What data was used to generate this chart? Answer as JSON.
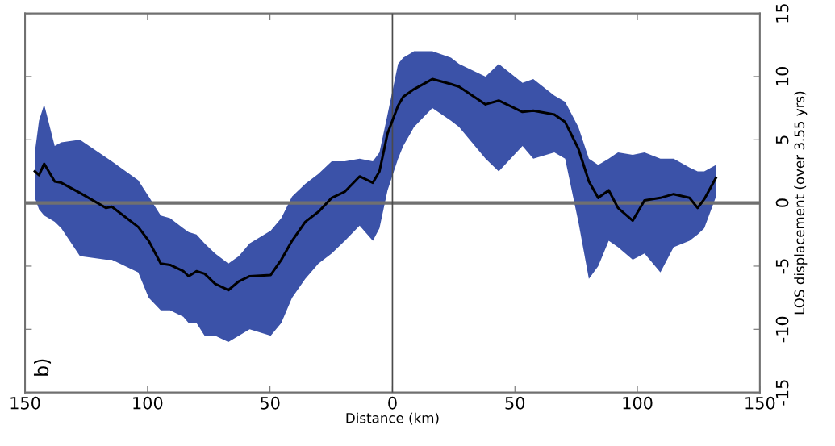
{
  "chart_data": {
    "type": "line",
    "xlabel": "Distance (km)",
    "ylabel": "LOS displacement (over 3.55 yrs)",
    "annotations": [
      "b)"
    ],
    "xlim": [
      -150,
      150
    ],
    "ylim": [
      -15,
      15
    ],
    "xticks": [
      {
        "value": -150,
        "label": "150"
      },
      {
        "value": -100,
        "label": "100"
      },
      {
        "value": -50,
        "label": "50"
      },
      0,
      50,
      100,
      150
    ],
    "yticks": [
      -15,
      -10,
      -5,
      0,
      5,
      10,
      15
    ],
    "grid": false,
    "marker": "none",
    "line_style": "solid",
    "ref_lines": [
      {
        "axis": "y",
        "value": 0,
        "color": "#707070"
      },
      {
        "axis": "x",
        "value": 0,
        "color": "#4a4a4a"
      }
    ],
    "x": [
      -146,
      -144.3,
      -142.2,
      -137.9,
      -135.2,
      -127.6,
      -116.9,
      -114.6,
      -103.8,
      -99.5,
      -94.6,
      -90.8,
      -85.4,
      -83.2,
      -80,
      -76.7,
      -72.4,
      -67,
      -62.7,
      -58.3,
      -49.7,
      -45.4,
      -41,
      -35.6,
      -30.2,
      -24.8,
      -19.4,
      -13.4,
      -8,
      -5.3,
      -2,
      2.3,
      4.4,
      8.8,
      16.3,
      23.9,
      27.2,
      38,
      43.4,
      53.1,
      57.5,
      66.1,
      70.5,
      75.9,
      80.2,
      84,
      88.3,
      92.1,
      98.1,
      102.9,
      109.4,
      114.8,
      121.3,
      124.6,
      127.3,
      132.1
    ],
    "series": [
      {
        "color": "#000000",
        "values": [
          2.5,
          2.2,
          3.1,
          1.7,
          1.6,
          0.8,
          -0.4,
          -0.3,
          -1.9,
          -3.0,
          -4.8,
          -4.9,
          -5.4,
          -5.8,
          -5.4,
          -5.6,
          -6.4,
          -6.9,
          -6.2,
          -5.8,
          -5.7,
          -4.5,
          -3.0,
          -1.5,
          -0.7,
          0.4,
          0.9,
          2.1,
          1.6,
          2.5,
          5.5,
          7.7,
          8.4,
          9.0,
          9.8,
          9.4,
          9.2,
          7.8,
          8.1,
          7.2,
          7.3,
          7.0,
          6.4,
          4.3,
          1.7,
          0.4,
          1.0,
          -0.4,
          -1.4,
          0.2,
          0.4,
          0.7,
          0.4,
          -0.4,
          0.3,
          2.0
        ],
        "lower": [
          0.4,
          -0.5,
          -1.0,
          -1.5,
          -2.0,
          -4.2,
          -4.5,
          -4.5,
          -5.5,
          -7.5,
          -8.5,
          -8.5,
          -9.0,
          -9.5,
          -9.5,
          -10.5,
          -10.5,
          -11.0,
          -10.5,
          -10.0,
          -10.5,
          -9.5,
          -7.5,
          -6.0,
          -4.8,
          -4.0,
          -3.0,
          -1.8,
          -3.0,
          -2.0,
          1.0,
          3.5,
          4.5,
          6.0,
          7.5,
          6.5,
          6.0,
          3.5,
          2.5,
          4.5,
          3.5,
          4.0,
          3.5,
          -1.5,
          -6.0,
          -5.0,
          -3.0,
          -3.5,
          -4.5,
          -4.0,
          -5.5,
          -3.5,
          -3.0,
          -2.5,
          -2.0,
          0.5
        ],
        "upper": [
          4.0,
          6.5,
          7.8,
          4.5,
          4.8,
          5.0,
          3.6,
          3.3,
          1.8,
          0.5,
          -1.0,
          -1.2,
          -2.0,
          -2.3,
          -2.5,
          -3.2,
          -4.0,
          -4.8,
          -4.2,
          -3.2,
          -2.2,
          -1.2,
          0.5,
          1.5,
          2.3,
          3.3,
          3.3,
          3.5,
          3.3,
          4.0,
          7.0,
          11.0,
          11.5,
          12.0,
          12.0,
          11.5,
          11.0,
          10.0,
          11.0,
          9.5,
          9.8,
          8.5,
          8.0,
          6.0,
          3.5,
          3.0,
          3.5,
          4.0,
          3.8,
          4.0,
          3.5,
          3.5,
          2.8,
          2.5,
          2.5,
          3.0
        ]
      }
    ]
  }
}
